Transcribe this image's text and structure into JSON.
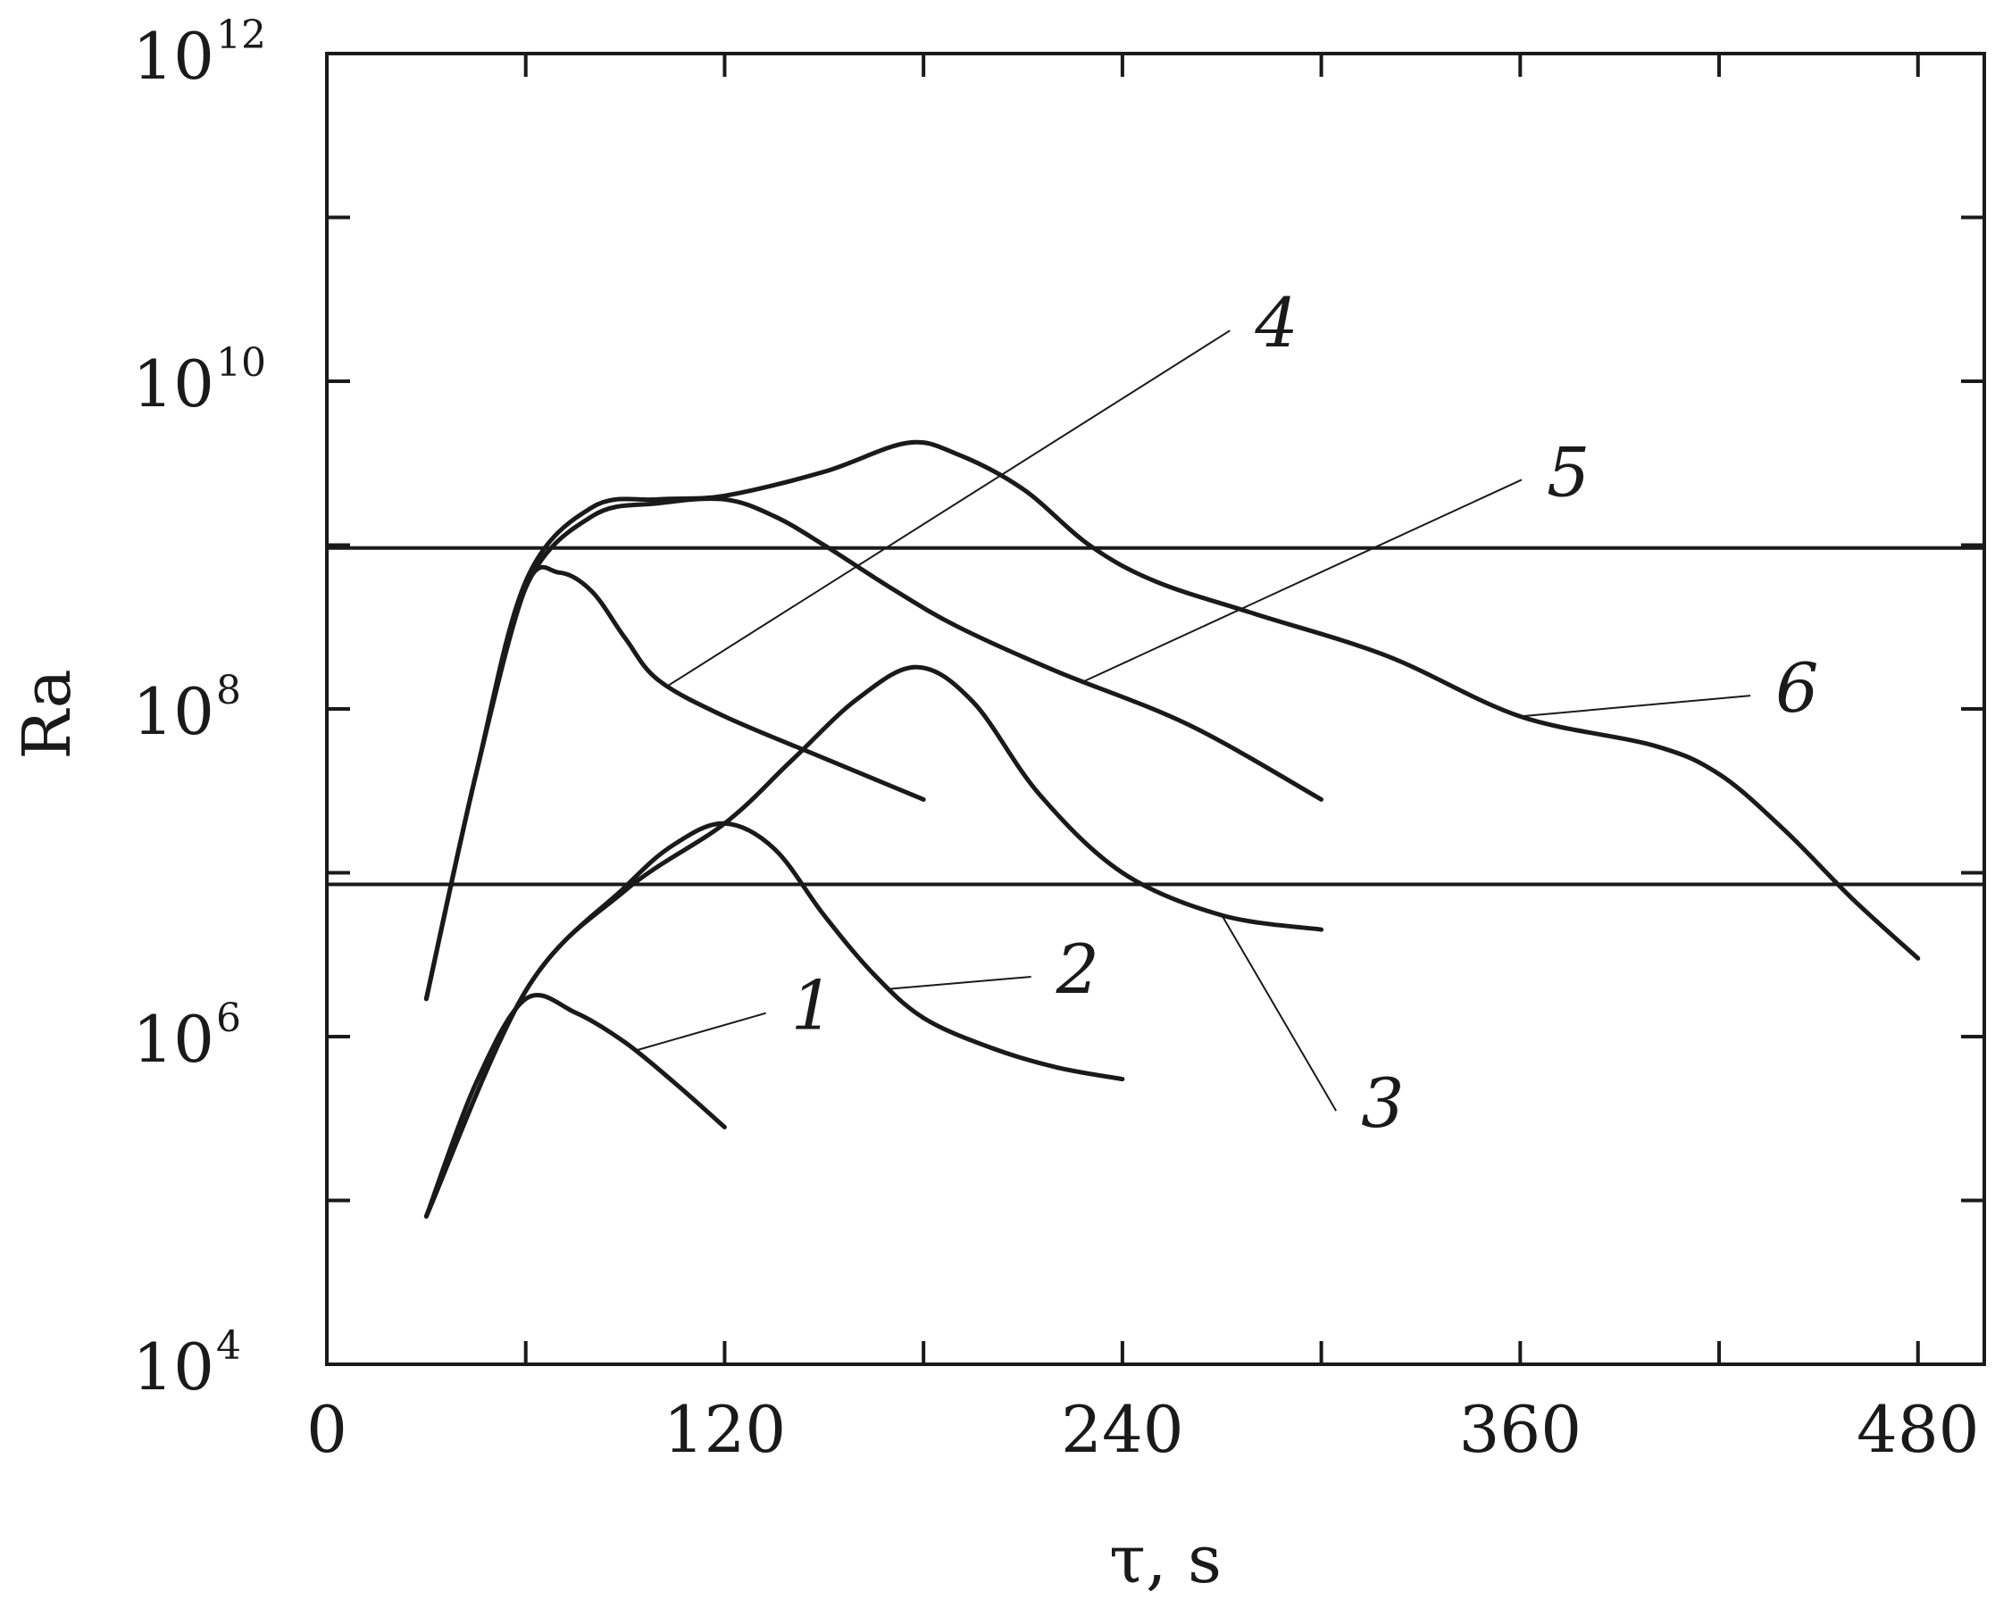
{
  "chart_data": {
    "type": "line",
    "title": "",
    "xlabel": "τ, s",
    "ylabel": "Ra",
    "xlim": [
      0,
      500
    ],
    "ylim": [
      10000,
      1000000000000
    ],
    "yscale": "log",
    "grid": false,
    "x_ticks": [
      {
        "value": 0,
        "label": "0"
      },
      {
        "value": 120,
        "label": "120"
      },
      {
        "value": 240,
        "label": "240"
      },
      {
        "value": 360,
        "label": "360"
      },
      {
        "value": 480,
        "label": "480"
      }
    ],
    "y_ticks": [
      {
        "value": 10000,
        "base": "10",
        "exp": "4"
      },
      {
        "value": 1000000,
        "base": "10",
        "exp": "6"
      },
      {
        "value": 100000000,
        "base": "10",
        "exp": "8"
      },
      {
        "value": 10000000000,
        "base": "10",
        "exp": "10"
      },
      {
        "value": 1000000000000,
        "base": "10",
        "exp": "12"
      }
    ],
    "reference_lines": [
      {
        "y": 8500000
      },
      {
        "y": 960000000
      }
    ],
    "series": [
      {
        "label": "1",
        "x": [
          30,
          45,
          60,
          75,
          90,
          105,
          120
        ],
        "y": [
          80000,
          520000,
          1700000,
          1400000,
          920000,
          520000,
          280000
        ],
        "leader": {
          "point_x": 93,
          "text_x": 140,
          "text_y": 1500000
        }
      },
      {
        "label": "2",
        "x": [
          30,
          60,
          90,
          105,
          120,
          135,
          150,
          165,
          180,
          200,
          220,
          240
        ],
        "y": [
          80000,
          1900000,
          8200000,
          15000000,
          20000000,
          14000000,
          5500000,
          2400000,
          1300000,
          860000,
          650000,
          550000
        ],
        "leader": {
          "point_x": 170,
          "text_x": 220,
          "text_y": 2500000
        }
      },
      {
        "label": "3",
        "x": [
          30,
          60,
          90,
          120,
          140,
          160,
          178,
          195,
          215,
          240,
          270,
          300
        ],
        "y": [
          80000,
          1900000,
          7800000,
          20000000,
          48000000,
          115000000,
          180000000,
          110000000,
          30000000,
          10000000,
          5500000,
          4500000
        ],
        "leader": {
          "point_x": 270,
          "text_x": 312,
          "text_y": 380000
        }
      },
      {
        "label": "4",
        "x": [
          30,
          45,
          60,
          70,
          80,
          90,
          100,
          120,
          150,
          180
        ],
        "y": [
          1700000,
          40000000,
          550000000,
          680000000,
          520000000,
          270000000,
          150000000,
          90000000,
          50000000,
          28000000
        ],
        "leader": {
          "point_x": 103,
          "text_x": 280,
          "text_y": 22000000000
        }
      },
      {
        "label": "5",
        "x": [
          30,
          45,
          60,
          80,
          100,
          120,
          135,
          150,
          170,
          190,
          220,
          260,
          300
        ],
        "y": [
          1700000,
          40000000,
          550000000,
          1500000000,
          1800000000,
          1900000000,
          1500000000,
          1000000000,
          550000000,
          320000000,
          170000000,
          80000000,
          28000000
        ],
        "leader": {
          "point_x": 228,
          "text_x": 368,
          "text_y": 2700000000
        }
      },
      {
        "label": "6",
        "x": [
          30,
          45,
          60,
          80,
          100,
          120,
          150,
          175,
          190,
          210,
          230,
          250,
          280,
          320,
          360,
          400,
          420,
          440,
          460,
          480
        ],
        "y": [
          1700000,
          40000000,
          600000000,
          1700000000,
          1900000000,
          2000000000,
          2800000000,
          4200000000,
          3600000000,
          2200000000,
          1000000000,
          600000000,
          380000000,
          210000000,
          90000000,
          60000000,
          40000000,
          18000000,
          7000000,
          3000000
        ],
        "leader": {
          "point_x": 360,
          "text_x": 437,
          "text_y": 130000000
        }
      }
    ]
  }
}
